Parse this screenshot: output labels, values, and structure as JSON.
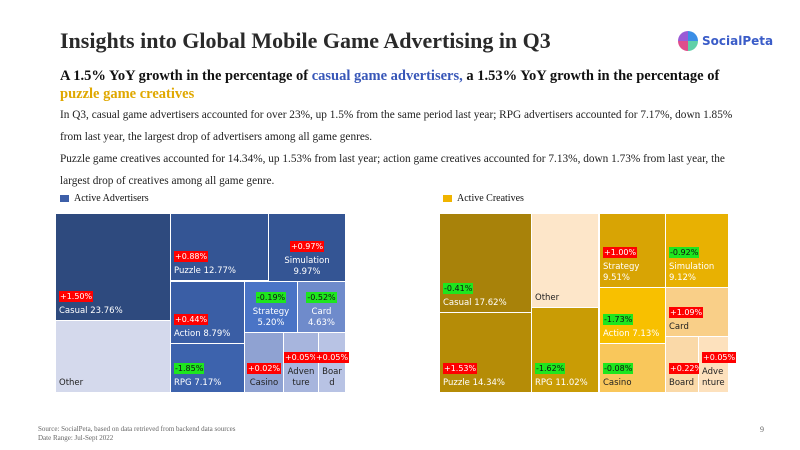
{
  "title": "Insights into Global Mobile Game Advertising in Q3",
  "logo": "SocialPeta",
  "subtitle": {
    "p1": "A 1.5% YoY growth in the percentage of ",
    "h1": "casual game advertisers,",
    "p2": " a 1.53% YoY growth in the percentage of ",
    "h2": "puzzle game creatives"
  },
  "paragraphs": [
    "In Q3, casual game advertisers accounted for over 23%, up 1.5% from the same period last year; RPG advertisers accounted for 7.17%, down 1.85% from last year,  the largest drop of advertisers among all game genres.",
    "Puzzle game creatives accounted for 14.34%, up 1.53% from last year; action game creatives accounted for 7.13%, down 1.73% from last year, the largest drop of creatives among all game genre."
  ],
  "advertisers": {
    "legend": "Active Advertisers",
    "color": "#3d5fa8",
    "tiles": [
      {
        "key": "casual",
        "label": "Casual 23.76%",
        "change": "+1.50%",
        "dir": "up"
      },
      {
        "key": "other",
        "label": "Other",
        "change": null
      },
      {
        "key": "puzzle",
        "label": "Puzzle 12.77%",
        "change": "+0.88%",
        "dir": "up"
      },
      {
        "key": "simulation",
        "label": "Simulation 9.97%",
        "change": "+0.97%",
        "dir": "up"
      },
      {
        "key": "action",
        "label": "Action 8.79%",
        "change": "+0.44%",
        "dir": "up"
      },
      {
        "key": "rpg",
        "label": "RPG 7.17%",
        "change": "-1.85%",
        "dir": "down"
      },
      {
        "key": "strategy",
        "label": "Strategy 5.20%",
        "change": "-0.19%",
        "dir": "down"
      },
      {
        "key": "card",
        "label": "Card 4.63%",
        "change": "-0.52%",
        "dir": "down"
      },
      {
        "key": "casino",
        "label": "Casino",
        "change": "+0.02%",
        "dir": "up"
      },
      {
        "key": "adventure",
        "label": "Adven ture",
        "change": "+0.05%",
        "dir": "up"
      },
      {
        "key": "board",
        "label": "Boar d",
        "change": "+0.05%",
        "dir": "up"
      }
    ]
  },
  "creatives": {
    "legend": "Active Creatives",
    "color": "#f0b400",
    "tiles": [
      {
        "key": "casual",
        "label": "Casual 17.62%",
        "change": "-0.41%",
        "dir": "down"
      },
      {
        "key": "puzzle",
        "label": "Puzzle 14.34%",
        "change": "+1.53%",
        "dir": "up"
      },
      {
        "key": "other",
        "label": "Other",
        "change": null
      },
      {
        "key": "rpg",
        "label": "RPG 11.02%",
        "change": "-1.62%",
        "dir": "down"
      },
      {
        "key": "strategy",
        "label": "Strategy 9.51%",
        "change": "+1.00%",
        "dir": "up"
      },
      {
        "key": "simulation",
        "label": "Simulation 9.12%",
        "change": "-0.92%",
        "dir": "down"
      },
      {
        "key": "action",
        "label": "Action 7.13%",
        "change": "-1.73%",
        "dir": "down"
      },
      {
        "key": "casino",
        "label": "Casino",
        "change": "-0.08%",
        "dir": "down"
      },
      {
        "key": "card",
        "label": "Card",
        "change": "+1.09%",
        "dir": "up"
      },
      {
        "key": "board",
        "label": "Board",
        "change": "+0.22%",
        "dir": "up"
      },
      {
        "key": "adventure",
        "label": "Adve nture",
        "change": "+0.05%",
        "dir": "up"
      }
    ]
  },
  "footer": {
    "source": "Source: SocialPeta, based on data retrieved from backend data sources",
    "range": "Date Range: Jul-Sept 2022",
    "page": "9"
  }
}
